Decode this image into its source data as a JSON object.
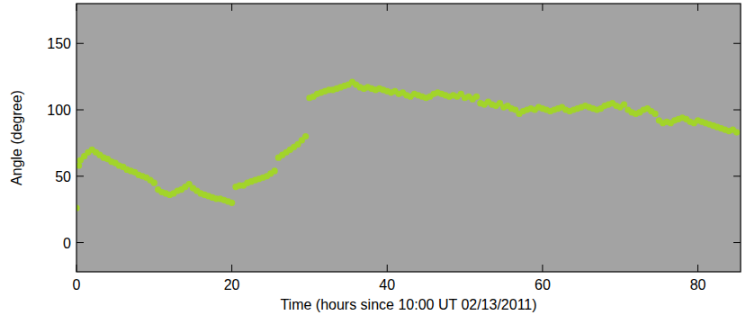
{
  "chart_data": {
    "type": "scatter",
    "xlabel": "Time (hours since 10:00 UT 02/13/2011)",
    "ylabel": "Angle (degree)",
    "xlim": [
      0,
      85.5
    ],
    "ylim": [
      -22,
      180
    ],
    "xticks": [
      0,
      20,
      40,
      60,
      80
    ],
    "yticks": [
      0,
      50,
      100,
      150
    ],
    "x": [
      0,
      0.3,
      0.5,
      1,
      1.5,
      2,
      2.5,
      3,
      3.5,
      4,
      4.5,
      5,
      5.5,
      6,
      6.5,
      7,
      7.5,
      8,
      8.5,
      9,
      9.5,
      10,
      10.5,
      11,
      11.5,
      12,
      12.5,
      13,
      13.5,
      14,
      14.5,
      15,
      15.5,
      16,
      16.5,
      17,
      17.5,
      18,
      18.5,
      19,
      19.5,
      20,
      20.5,
      21,
      21.5,
      22,
      22.5,
      23,
      23.5,
      24,
      24.5,
      25,
      25.5,
      26,
      26.5,
      27,
      27.5,
      28,
      28.5,
      29,
      29.5,
      30,
      30.5,
      31,
      31.5,
      32,
      32.5,
      33,
      33.5,
      34,
      34.5,
      35,
      35.5,
      36,
      36.5,
      37,
      37.5,
      38,
      38.5,
      39,
      39.5,
      40,
      40.5,
      41,
      41.5,
      42,
      42.5,
      43,
      43.5,
      44,
      44.5,
      45,
      45.5,
      46,
      46.5,
      47,
      47.5,
      48,
      48.5,
      49,
      49.5,
      50,
      50.5,
      51,
      51.5,
      52,
      52.5,
      53,
      53.5,
      54,
      54.5,
      55,
      55.5,
      56,
      56.5,
      57,
      57.5,
      58,
      58.5,
      59,
      59.5,
      60,
      60.5,
      61,
      61.5,
      62,
      62.5,
      63,
      63.5,
      64,
      64.5,
      65,
      65.5,
      66,
      66.5,
      67,
      67.5,
      68,
      68.5,
      69,
      69.5,
      70,
      70.5,
      71,
      71.5,
      72,
      72.5,
      73,
      73.5,
      74,
      74.5,
      75,
      75.5,
      76,
      76.5,
      77,
      77.5,
      78,
      78.5,
      79,
      79.5,
      80,
      80.5,
      81,
      81.5,
      82,
      82.5,
      83,
      83.5,
      84,
      84.5,
      85
    ],
    "series": [
      {
        "color": "#a2d42a",
        "marker": "circle",
        "values": [
          26,
          58,
          62,
          65,
          68,
          70,
          68,
          66,
          64,
          63,
          61,
          60,
          58,
          57,
          55,
          54,
          53,
          51,
          50,
          49,
          47,
          45,
          40,
          38,
          37,
          36,
          37,
          39,
          40,
          42,
          44,
          41,
          39,
          37,
          36,
          35,
          34,
          33,
          33,
          32,
          31,
          30,
          42,
          43,
          43,
          45,
          46,
          47,
          48,
          49,
          50,
          52,
          54,
          64,
          66,
          68,
          70,
          72,
          74,
          77,
          80,
          109,
          110,
          112,
          113,
          114,
          115,
          115,
          116,
          117,
          118,
          119,
          121,
          119,
          117,
          116,
          117,
          116,
          115,
          116,
          115,
          114,
          113,
          114,
          112,
          113,
          111,
          110,
          112,
          111,
          110,
          109,
          110,
          112,
          113,
          112,
          111,
          110,
          111,
          110,
          112,
          109,
          110,
          108,
          110,
          105,
          104,
          106,
          104,
          103,
          105,
          102,
          103,
          101,
          100,
          97,
          99,
          100,
          101,
          100,
          102,
          101,
          100,
          99,
          100,
          101,
          102,
          100,
          99,
          100,
          101,
          102,
          103,
          102,
          101,
          100,
          101,
          103,
          104,
          105,
          103,
          102,
          104,
          100,
          98,
          97,
          98,
          100,
          101,
          99,
          97,
          92,
          90,
          91,
          90,
          92,
          93,
          94,
          93,
          91,
          90,
          92,
          91,
          90,
          89,
          88,
          87,
          86,
          85,
          84,
          85,
          83
        ]
      }
    ]
  }
}
